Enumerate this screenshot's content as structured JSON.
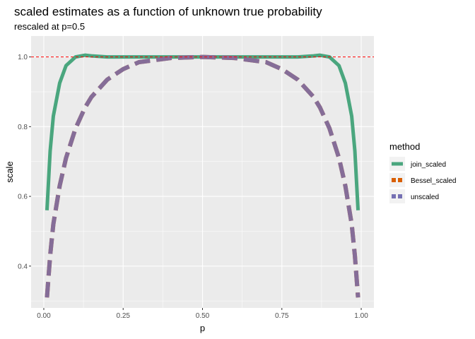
{
  "chart_data": {
    "type": "line",
    "title": "scaled estimates as a function of unknown true probability",
    "subtitle": "rescaled at p=0.5",
    "xlabel": "p",
    "ylabel": "scale",
    "xlim": [
      -0.04,
      1.04
    ],
    "ylim": [
      0.28,
      1.06
    ],
    "x_ticks": [
      0.0,
      0.25,
      0.5,
      0.75,
      1.0
    ],
    "x_tick_labels": [
      "0.00",
      "0.25",
      "0.50",
      "0.75",
      "1.00"
    ],
    "y_ticks": [
      0.4,
      0.6,
      0.8,
      1.0
    ],
    "y_tick_labels": [
      "0.4",
      "0.6",
      "0.8",
      "1.0"
    ],
    "grid": true,
    "legend_position": "right",
    "reference_line": {
      "y": 1.0,
      "color": "#ff0000",
      "style": "dashed"
    },
    "legend": {
      "title": "method",
      "entries": [
        {
          "name": "join_scaled",
          "color": "#4aa67e",
          "style": "solid"
        },
        {
          "name": "Bessel_scaled",
          "color": "#d95f02",
          "style": "dashed"
        },
        {
          "name": "unscaled",
          "color": "#7570b3",
          "style": "dashed"
        }
      ]
    },
    "series": [
      {
        "name": "join_scaled",
        "color": "#4aa67e",
        "x": [
          0.01,
          0.02,
          0.03,
          0.05,
          0.07,
          0.1,
          0.13,
          0.15,
          0.2,
          0.3,
          0.4,
          0.5,
          0.6,
          0.7,
          0.8,
          0.85,
          0.87,
          0.9,
          0.93,
          0.95,
          0.97,
          0.98,
          0.99
        ],
        "y": [
          0.56,
          0.73,
          0.83,
          0.925,
          0.975,
          1.0,
          1.005,
          1.003,
          1.0,
          1.0,
          1.0,
          1.0,
          1.0,
          1.0,
          1.0,
          1.003,
          1.005,
          1.0,
          0.975,
          0.925,
          0.83,
          0.73,
          0.56
        ]
      },
      {
        "name": "Bessel_scaled",
        "color": "#d95f02",
        "x": [
          0.01,
          0.02,
          0.03,
          0.05,
          0.07,
          0.1,
          0.13,
          0.15,
          0.2,
          0.25,
          0.3,
          0.4,
          0.5,
          0.6,
          0.7,
          0.75,
          0.8,
          0.85,
          0.87,
          0.9,
          0.93,
          0.95,
          0.97,
          0.98,
          0.99
        ],
        "y": [
          0.31,
          0.43,
          0.52,
          0.63,
          0.71,
          0.795,
          0.855,
          0.885,
          0.935,
          0.965,
          0.985,
          0.997,
          1.0,
          0.997,
          0.985,
          0.965,
          0.935,
          0.885,
          0.855,
          0.795,
          0.71,
          0.63,
          0.52,
          0.43,
          0.31
        ]
      },
      {
        "name": "unscaled",
        "color": "#7570b3",
        "x": [
          0.01,
          0.02,
          0.03,
          0.05,
          0.07,
          0.1,
          0.13,
          0.15,
          0.2,
          0.25,
          0.3,
          0.4,
          0.5,
          0.6,
          0.7,
          0.75,
          0.8,
          0.85,
          0.87,
          0.9,
          0.93,
          0.95,
          0.97,
          0.98,
          0.99
        ],
        "y": [
          0.31,
          0.43,
          0.52,
          0.63,
          0.71,
          0.795,
          0.855,
          0.885,
          0.935,
          0.965,
          0.985,
          0.997,
          1.0,
          0.997,
          0.985,
          0.965,
          0.935,
          0.885,
          0.855,
          0.795,
          0.71,
          0.63,
          0.52,
          0.43,
          0.31
        ]
      }
    ]
  }
}
